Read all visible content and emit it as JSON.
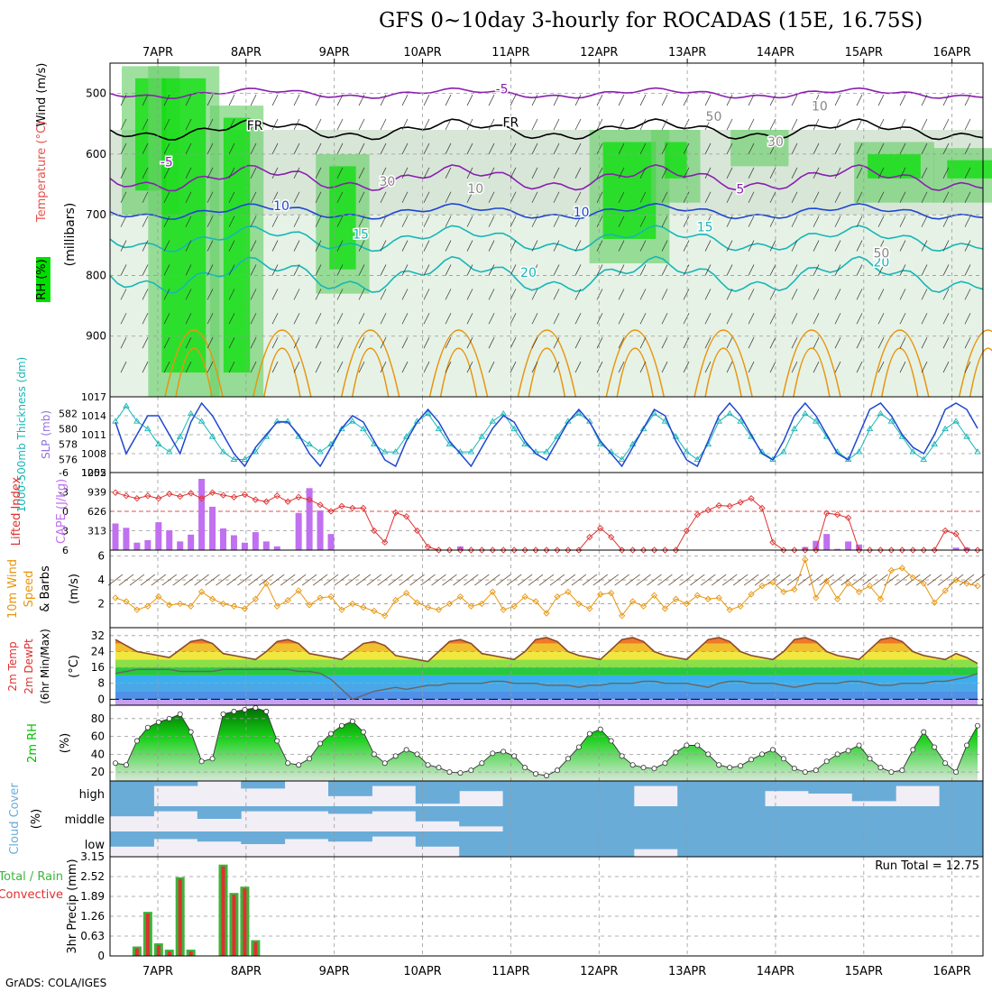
{
  "title": "GFS 0~10day 3-hourly for ROCADAS (15E, 16.75S)",
  "credit": "GrADS: COLA/IGES",
  "dates": [
    "7APR",
    "8APR",
    "9APR",
    "10APR",
    "11APR",
    "12APR",
    "13APR",
    "14APR",
    "15APR",
    "16APR"
  ],
  "colors": {
    "rh_green": "#00e000",
    "purple": "#8a1fb0",
    "blue": "#1e46d0",
    "cyan": "#16b6b6",
    "orange": "#e8950e",
    "red": "#e03030",
    "cloud": "#6aacd8",
    "precip_green": "#3cb43c"
  },
  "chart_data": [
    {
      "type": "heatmap",
      "panel": "upper-air",
      "ylabel_parts": [
        "RH (%)",
        "Temperature (°C)",
        "Wind (m/s)"
      ],
      "yunit": "(millibars)",
      "y_ticks": [
        500,
        600,
        700,
        800,
        900
      ],
      "ylim": [
        1000,
        450
      ],
      "contour_labels": [
        {
          "text": "-5",
          "color": "#8a1fb0",
          "level_mb": 500,
          "day": 3.9
        },
        {
          "text": "FR",
          "color": "#000",
          "level_mb": 560,
          "day": 1.1
        },
        {
          "text": "FR",
          "color": "#000",
          "level_mb": 555,
          "day": 4.0
        },
        {
          "text": "-5",
          "color": "#8a1fb0",
          "level_mb": 620,
          "day": 0.1
        },
        {
          "text": "5",
          "color": "#8a1fb0",
          "level_mb": 665,
          "day": 6.6
        },
        {
          "text": "10",
          "color": "#1e46d0",
          "level_mb": 692,
          "day": 1.4
        },
        {
          "text": "10",
          "color": "#1e46d0",
          "level_mb": 703,
          "day": 4.8
        },
        {
          "text": "15",
          "color": "#16b6b6",
          "level_mb": 739,
          "day": 2.3
        },
        {
          "text": "15",
          "color": "#16b6b6",
          "level_mb": 727,
          "day": 6.2
        },
        {
          "text": "20",
          "color": "#16b6b6",
          "level_mb": 802,
          "day": 4.2
        },
        {
          "text": "20",
          "color": "#16b6b6",
          "level_mb": 785,
          "day": 8.2
        },
        {
          "text": "30",
          "color": "#888",
          "level_mb": 652,
          "day": 2.6
        },
        {
          "text": "10",
          "color": "#888",
          "level_mb": 664,
          "day": 3.6
        },
        {
          "text": "50",
          "color": "#888",
          "level_mb": 545,
          "day": 6.3
        },
        {
          "text": "30",
          "color": "#888",
          "level_mb": 587,
          "day": 7.0
        },
        {
          "text": "10",
          "color": "#888",
          "level_mb": 528,
          "day": 7.5
        },
        {
          "text": "50",
          "color": "#888",
          "level_mb": 770,
          "day": 8.2
        }
      ]
    },
    {
      "type": "line",
      "panel": "thickness-slp",
      "ylabel_left": "1000-500mb Thickness (dm)",
      "ylabel_right": "SLP (mb)",
      "left_ticks": [
        576,
        578,
        580,
        582
      ],
      "right_ticks": [
        1005,
        1008,
        1011,
        1014,
        1017
      ],
      "series": [
        {
          "name": "SLP (mb)",
          "color": "#1e46d0",
          "values": [
            1013,
            1008,
            1011,
            1014,
            1014,
            1011,
            1008,
            1013,
            1016,
            1014,
            1011,
            1008,
            1006,
            1009,
            1011,
            1013,
            1013,
            1011,
            1008,
            1006,
            1009,
            1012,
            1014,
            1013,
            1010,
            1007,
            1006,
            1010,
            1013,
            1015,
            1013,
            1010,
            1008,
            1006,
            1009,
            1012,
            1014,
            1013,
            1010,
            1008,
            1007,
            1010,
            1013,
            1015,
            1013,
            1010,
            1008,
            1006,
            1009,
            1012,
            1015,
            1014,
            1010,
            1007,
            1006,
            1010,
            1014,
            1016,
            1014,
            1011,
            1008,
            1007,
            1010,
            1014,
            1016,
            1014,
            1011,
            1008,
            1007,
            1011,
            1015,
            1016,
            1014,
            1011,
            1009,
            1008,
            1011,
            1015,
            1016,
            1015,
            1012
          ]
        },
        {
          "name": "1000-500mb Thickness (dm)",
          "color": "#16b6b6",
          "values": [
            581,
            583,
            581,
            580,
            578,
            577,
            579,
            582,
            581,
            579,
            577,
            576,
            576,
            577,
            579,
            581,
            581,
            579,
            578,
            577,
            578,
            580,
            581,
            580,
            578,
            577,
            577,
            579,
            581,
            582,
            580,
            578,
            577,
            577,
            579,
            581,
            582,
            580,
            578,
            577,
            577,
            579,
            581,
            582,
            581,
            578,
            577,
            576,
            578,
            580,
            582,
            581,
            579,
            577,
            576,
            578,
            581,
            582,
            581,
            579,
            577,
            576,
            577,
            580,
            582,
            581,
            579,
            577,
            576,
            577,
            580,
            582,
            581,
            579,
            577,
            576,
            578,
            580,
            581,
            579,
            577
          ]
        }
      ]
    },
    {
      "type": "bar",
      "panel": "cape-lifted-index",
      "ylabel_left": "Lifted Index",
      "ylabel_right": "CAPE (J/kg)",
      "left_ticks": [
        -6,
        -3,
        0,
        3,
        6
      ],
      "right_ticks": [
        313,
        626,
        939,
        1252
      ],
      "series": [
        {
          "name": "CAPE (J/kg)",
          "color": "#c070f0",
          "values": [
            430,
            360,
            120,
            160,
            450,
            320,
            140,
            250,
            1150,
            700,
            350,
            240,
            120,
            290,
            140,
            60,
            0,
            600,
            1000,
            640,
            260,
            0,
            0,
            0,
            0,
            0,
            0,
            0,
            0,
            0,
            0,
            0,
            60,
            0,
            0,
            0,
            0,
            0,
            0,
            0,
            0,
            0,
            0,
            0,
            0,
            0,
            0,
            0,
            0,
            0,
            0,
            0,
            0,
            0,
            0,
            0,
            0,
            0,
            0,
            0,
            0,
            0,
            0,
            0,
            50,
            150,
            260,
            20,
            140,
            90,
            0,
            0,
            0,
            0,
            0,
            0,
            0,
            0,
            40,
            40,
            0
          ]
        },
        {
          "name": "Lifted Index",
          "color": "#e03030",
          "values": [
            -2.9,
            -2.4,
            -2.0,
            -2.4,
            -2.0,
            -2.7,
            -2.3,
            -2.8,
            -2.0,
            -2.9,
            -2.5,
            -2.2,
            -2.6,
            -1.8,
            -1.5,
            -2.4,
            -1.5,
            -2.2,
            -1.8,
            -1.0,
            0.0,
            -0.8,
            -0.5,
            -0.5,
            3.0,
            4.8,
            0.2,
            0.8,
            3.0,
            5.5,
            6.0,
            6.0,
            6.0,
            6.0,
            6.0,
            6.0,
            6.0,
            6.0,
            6.0,
            6.0,
            6.0,
            6.0,
            6.0,
            6.0,
            4.0,
            2.6,
            4.0,
            6.0,
            6.0,
            6.0,
            6.0,
            6.0,
            6.0,
            3.0,
            0.5,
            -0.2,
            -0.9,
            -0.8,
            -1.4,
            -2.0,
            -0.5,
            4.8,
            6.0,
            6.0,
            6.0,
            6.0,
            0.3,
            0.5,
            1.0,
            6.0,
            6.0,
            6.0,
            6.0,
            6.0,
            6.0,
            6.0,
            6.0,
            3.0,
            3.5,
            6.0,
            6.0
          ]
        }
      ]
    },
    {
      "type": "line",
      "panel": "10m-wind",
      "ylabel": "10m Wind Speed & Barbs (m/s)",
      "y_ticks": [
        2,
        4,
        6
      ],
      "ylim": [
        0,
        6.5
      ],
      "series": [
        {
          "name": "10m Wind Speed",
          "color": "#e8950e",
          "values": [
            2.5,
            2.2,
            1.5,
            1.8,
            2.6,
            1.9,
            2.0,
            1.8,
            3.0,
            2.4,
            2.0,
            1.8,
            1.6,
            2.4,
            3.7,
            1.8,
            2.3,
            3.1,
            1.9,
            2.5,
            2.6,
            1.5,
            2.0,
            1.7,
            1.4,
            1.0,
            2.3,
            2.9,
            2.1,
            1.7,
            1.5,
            2.0,
            2.6,
            1.8,
            2.0,
            3.0,
            1.5,
            1.8,
            2.6,
            2.2,
            1.2,
            2.6,
            3.0,
            2.0,
            1.6,
            2.8,
            2.9,
            1.0,
            2.2,
            1.8,
            2.7,
            1.6,
            2.4,
            2.0,
            2.7,
            2.4,
            2.5,
            1.5,
            1.8,
            2.8,
            3.5,
            3.8,
            3.0,
            3.2,
            5.7,
            2.5,
            3.9,
            2.4,
            3.7,
            3.0,
            3.5,
            2.4,
            4.8,
            5.0,
            4.2,
            3.7,
            2.1,
            3.1,
            4.0,
            3.7,
            3.5
          ]
        }
      ]
    },
    {
      "type": "area",
      "panel": "2m-temp-dewpt",
      "ylabel": "2m Temp 2m DewPt (6hr Min/Max) (°C)",
      "y_ticks": [
        0,
        8,
        16,
        24,
        32
      ],
      "ylim": [
        -3,
        36
      ],
      "series": [
        {
          "name": "2m Temp",
          "color": "#8a4a2a",
          "values": [
            30,
            27,
            24,
            23,
            22,
            21,
            25,
            29,
            30,
            28,
            23,
            22,
            21,
            20,
            24,
            29,
            30,
            28,
            23,
            22,
            21,
            20,
            24,
            28,
            29,
            27,
            22,
            21,
            20,
            19,
            24,
            29,
            30,
            28,
            23,
            22,
            21,
            20,
            24,
            30,
            31,
            29,
            24,
            22,
            21,
            20,
            25,
            30,
            31,
            29,
            24,
            22,
            21,
            20,
            25,
            30,
            31,
            29,
            24,
            22,
            21,
            20,
            24,
            30,
            31,
            29,
            24,
            22,
            21,
            20,
            25,
            30,
            31,
            29,
            24,
            22,
            21,
            20,
            23,
            21,
            18
          ]
        },
        {
          "name": "2m DewPt",
          "color": "#666",
          "values": [
            13,
            14,
            15,
            15,
            15,
            15,
            14,
            14,
            14,
            14,
            15,
            15,
            15,
            15,
            15,
            15,
            15,
            14,
            14,
            13,
            10,
            5,
            0,
            2,
            4,
            5,
            6,
            5,
            6,
            7,
            7,
            8,
            8,
            8,
            8,
            9,
            9,
            8,
            8,
            8,
            7,
            7,
            7,
            6,
            7,
            7,
            8,
            8,
            8,
            9,
            9,
            8,
            8,
            8,
            7,
            6,
            8,
            9,
            9,
            8,
            8,
            8,
            7,
            6,
            7,
            8,
            8,
            8,
            9,
            9,
            8,
            7,
            7,
            8,
            8,
            8,
            9,
            9,
            10,
            11,
            13
          ]
        }
      ]
    },
    {
      "type": "area",
      "panel": "2m-rh",
      "ylabel": "2m RH (%)",
      "y_ticks": [
        20,
        40,
        60,
        80
      ],
      "ylim": [
        10,
        95
      ],
      "series": [
        {
          "name": "2m RH",
          "color": "#00c000",
          "values": [
            30,
            28,
            55,
            70,
            76,
            80,
            85,
            65,
            32,
            35,
            85,
            88,
            90,
            92,
            88,
            55,
            30,
            28,
            35,
            52,
            63,
            72,
            77,
            65,
            40,
            30,
            38,
            45,
            40,
            28,
            25,
            20,
            19,
            22,
            30,
            41,
            43,
            38,
            25,
            18,
            16,
            22,
            35,
            48,
            63,
            68,
            55,
            38,
            28,
            25,
            24,
            30,
            42,
            50,
            50,
            40,
            28,
            25,
            27,
            34,
            40,
            45,
            35,
            24,
            20,
            22,
            32,
            40,
            44,
            50,
            35,
            25,
            20,
            22,
            45,
            65,
            48,
            30,
            20,
            50,
            72
          ]
        }
      ]
    },
    {
      "type": "heatmap",
      "panel": "cloud-cover",
      "ylabel": "Cloud Cover (%)",
      "rows": [
        "high",
        "middle",
        "low"
      ]
    },
    {
      "type": "bar",
      "panel": "3hr-precip",
      "ylabel": "3hr Precip (mm)",
      "left_label": [
        "Total / Rain",
        "Convective"
      ],
      "y_ticks": [
        0,
        0.63,
        1.26,
        1.89,
        2.52,
        3.15
      ],
      "ylim": [
        0,
        3.15
      ],
      "run_total_label": "Run Total = 12.75",
      "series": [
        {
          "name": "3hr Precip",
          "color": "#3cb43c",
          "values": [
            0,
            0,
            0.3,
            1.4,
            0.4,
            0.2,
            2.5,
            0.2,
            0,
            0,
            2.9,
            2.0,
            2.2,
            0.5,
            0,
            0,
            0,
            0,
            0,
            0,
            0,
            0,
            0,
            0,
            0,
            0,
            0,
            0,
            0,
            0,
            0,
            0,
            0,
            0,
            0,
            0,
            0,
            0,
            0,
            0,
            0,
            0,
            0,
            0,
            0,
            0,
            0,
            0,
            0,
            0,
            0,
            0,
            0,
            0,
            0,
            0,
            0,
            0,
            0,
            0,
            0,
            0,
            0,
            0,
            0,
            0,
            0,
            0,
            0,
            0,
            0,
            0,
            0,
            0,
            0,
            0,
            0,
            0,
            0,
            0,
            0
          ]
        }
      ]
    }
  ]
}
